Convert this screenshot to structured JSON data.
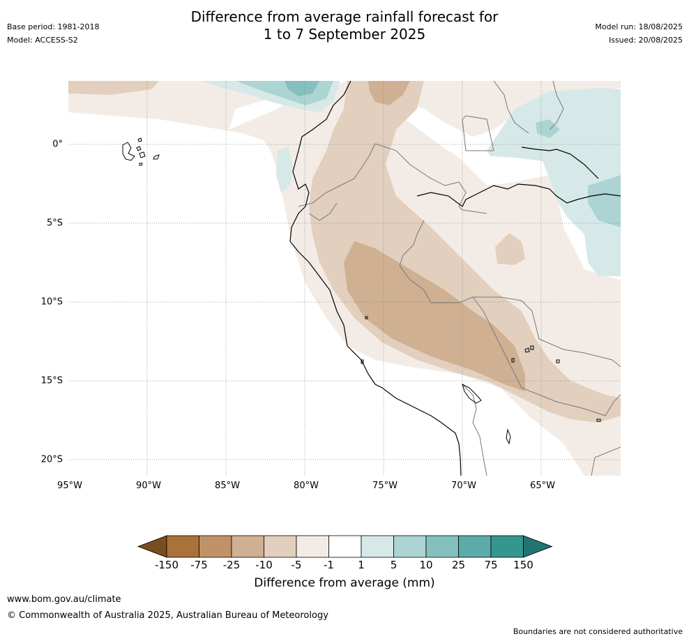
{
  "title": {
    "line1": "Difference from average rainfall forecast for",
    "line2": "1 to 7 September 2025"
  },
  "meta": {
    "base_period": "Base period: 1981-2018",
    "model": "Model: ACCESS-S2",
    "model_run": "Model run: 18/08/2025",
    "issued": "Issued: 20/08/2025"
  },
  "axes": {
    "latitudes": [
      "0°",
      "5°S",
      "10°S",
      "15°S",
      "20°S"
    ],
    "longitudes": [
      "95°W",
      "90°W",
      "85°W",
      "80°W",
      "75°W",
      "70°W",
      "65°W"
    ]
  },
  "legend": {
    "title": "Difference from average (mm)",
    "ticks": [
      "-150",
      "-75",
      "-25",
      "-10",
      "-5",
      "-1",
      "1",
      "5",
      "10",
      "25",
      "75",
      "150"
    ],
    "colors": [
      "#7a4d1e",
      "#aa713a",
      "#c09268",
      "#d0b092",
      "#e2cfbe",
      "#f3ece6",
      "#ffffff",
      "#d6e9e8",
      "#abd4d3",
      "#85c0bf",
      "#5aabaa",
      "#34968f",
      "#237571"
    ]
  },
  "footer": {
    "url": "www.bom.gov.au/climate",
    "copyright": "© Commonwealth of Australia 2025, Australian Bureau of Meteorology",
    "note": "Boundaries are not considered authoritative"
  }
}
